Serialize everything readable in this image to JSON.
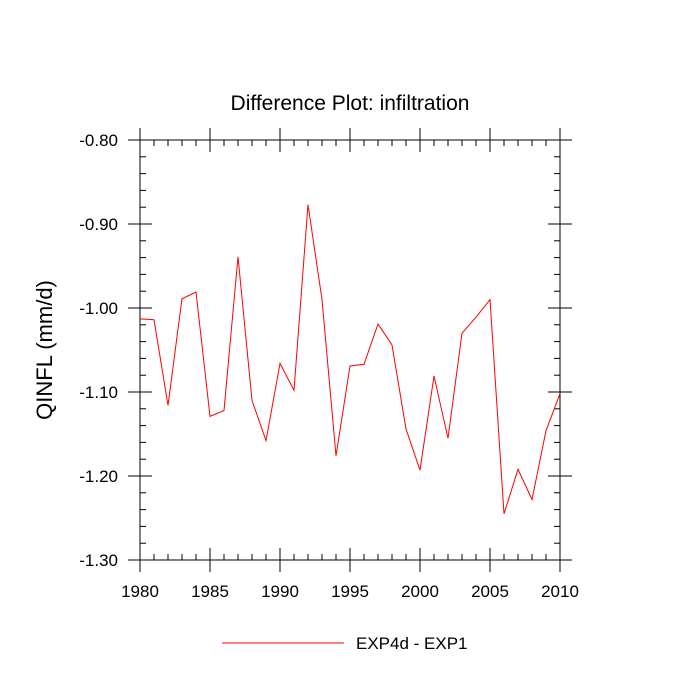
{
  "chart_data": {
    "type": "line",
    "title": "Difference Plot: infiltration",
    "xlabel": "",
    "ylabel": "QINFL  (mm/d)",
    "xlim": [
      1980,
      2010
    ],
    "ylim": [
      -1.3,
      -0.8
    ],
    "x_ticks": [
      "1980",
      "1985",
      "1990",
      "1995",
      "2000",
      "2005",
      "2010"
    ],
    "y_ticks": [
      "-0.80",
      "-0.90",
      "-1.00",
      "-1.10",
      "-1.20",
      "-1.30"
    ],
    "legend_position": "bottom-center",
    "series": [
      {
        "name": "EXP4d - EXP1",
        "color": "#ff0000",
        "x": [
          1980,
          1981,
          1982,
          1983,
          1984,
          1985,
          1986,
          1987,
          1988,
          1989,
          1990,
          1991,
          1992,
          1993,
          1994,
          1995,
          1996,
          1997,
          1998,
          1999,
          2000,
          2001,
          2002,
          2003,
          2004,
          2005,
          2006,
          2007,
          2008,
          2009,
          2010
        ],
        "y": [
          -1.013,
          -1.014,
          -1.116,
          -0.989,
          -0.981,
          -1.129,
          -1.122,
          -0.939,
          -1.11,
          -1.158,
          -1.066,
          -1.098,
          -0.877,
          -0.99,
          -1.176,
          -1.069,
          -1.067,
          -1.019,
          -1.044,
          -1.144,
          -1.193,
          -1.081,
          -1.155,
          -1.03,
          -1.011,
          -0.99,
          -1.245,
          -1.192,
          -1.228,
          -1.146,
          -1.102
        ]
      }
    ]
  }
}
